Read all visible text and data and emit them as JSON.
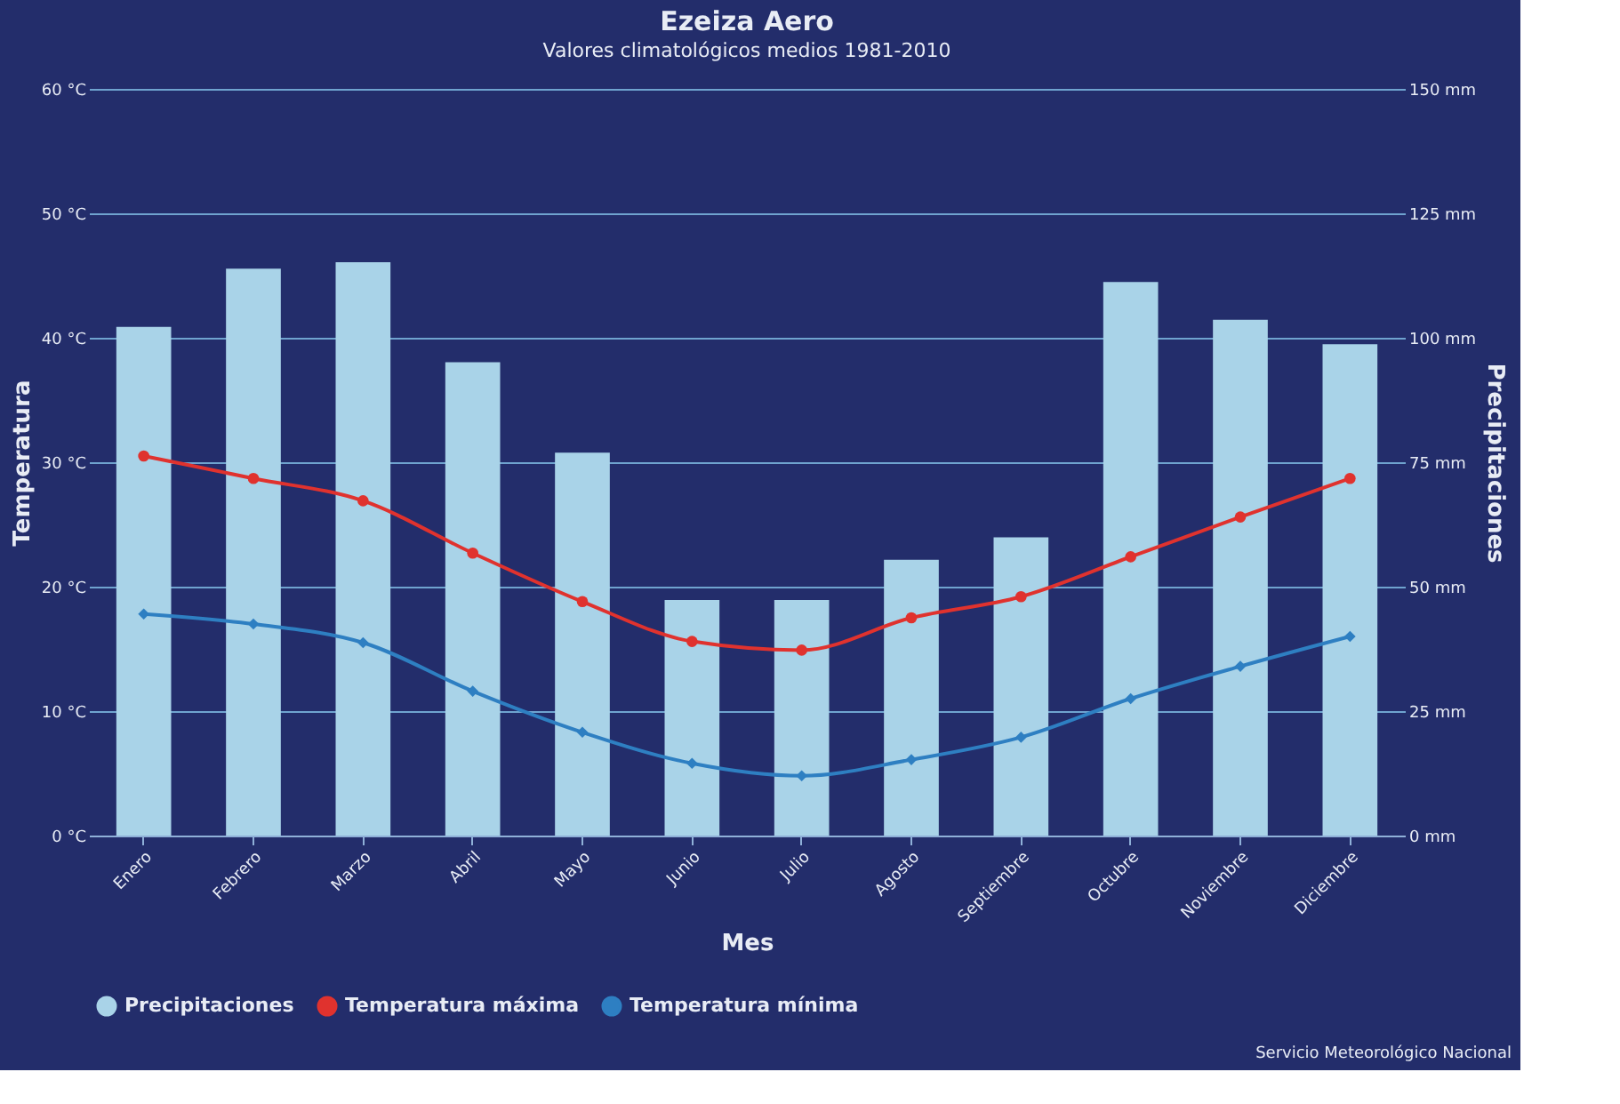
{
  "chart_data": {
    "type": "bar",
    "title": "Ezeiza Aero",
    "subtitle": "Valores climatológicos medios 1981-2010",
    "xlabel": "Mes",
    "ylabel": "Temperatura",
    "y2label": "Precipitaciones",
    "categories": [
      "Enero",
      "Febrero",
      "Marzo",
      "Abril",
      "Mayo",
      "Junio",
      "Julio",
      "Agosto",
      "Septiembre",
      "Octubre",
      "Noviembre",
      "Diciembre"
    ],
    "series": [
      {
        "name": "Precipitaciones",
        "axis": "y2",
        "color": "#a9d3e8",
        "values": [
          102.2,
          113.9,
          115.2,
          95.1,
          76.9,
          47.3,
          47.3,
          55.4,
          59.9,
          111.2,
          103.6,
          98.7
        ]
      },
      {
        "name": "Temperatura máxima",
        "type": "line",
        "marker": "circle",
        "color": "#e0322e",
        "values": [
          30.5,
          28.7,
          26.9,
          22.7,
          18.8,
          15.6,
          14.9,
          17.5,
          19.2,
          22.4,
          25.6,
          28.7
        ]
      },
      {
        "name": "Temperatura mínima",
        "type": "line",
        "marker": "diamond",
        "color": "#2e7fc2",
        "values": [
          17.8,
          17.0,
          15.5,
          11.6,
          8.3,
          5.8,
          4.8,
          6.1,
          7.9,
          11.0,
          13.6,
          16.0
        ]
      }
    ],
    "ylim": [
      0,
      60
    ],
    "yticks": [
      {
        "value": 0,
        "label": "0 °C"
      },
      {
        "value": 10,
        "label": "10 °C"
      },
      {
        "value": 20,
        "label": "20 °C"
      },
      {
        "value": 30,
        "label": "30 °C"
      },
      {
        "value": 40,
        "label": "40 °C"
      },
      {
        "value": 50,
        "label": "50 °C"
      },
      {
        "value": 60,
        "label": "60 °C"
      }
    ],
    "y2lim": [
      0,
      150
    ],
    "y2ticks": [
      {
        "value": 0,
        "label": "0 mm"
      },
      {
        "value": 25,
        "label": "25 mm"
      },
      {
        "value": 50,
        "label": "50 mm"
      },
      {
        "value": 75,
        "label": "75 mm"
      },
      {
        "value": 100,
        "label": "100 mm"
      },
      {
        "value": 125,
        "label": "125 mm"
      },
      {
        "value": 150,
        "label": "150 mm"
      }
    ],
    "grid": "y",
    "legend": "bottom",
    "line_style": "solid",
    "annotations": [
      "Servicio Meteorológico Nacional"
    ]
  }
}
